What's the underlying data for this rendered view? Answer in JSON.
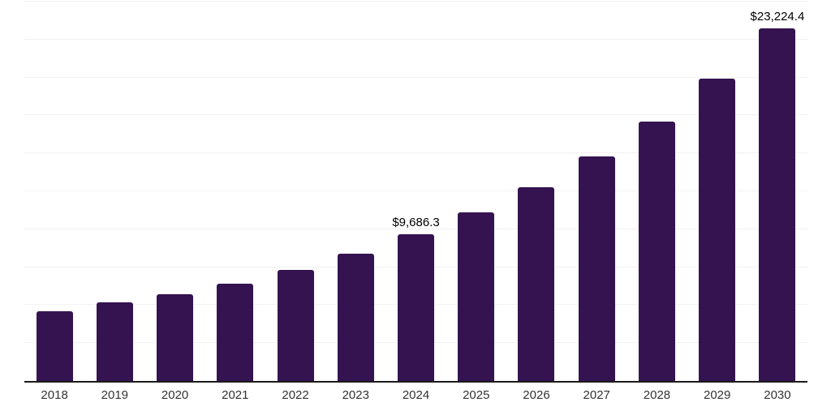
{
  "chart_data": {
    "type": "bar",
    "title": "",
    "categories": [
      "2018",
      "2019",
      "2020",
      "2021",
      "2022",
      "2023",
      "2024",
      "2025",
      "2026",
      "2027",
      "2028",
      "2029",
      "2030"
    ],
    "values": [
      4620,
      5160,
      5740,
      6430,
      7330,
      8395,
      9686.3,
      11105,
      12755,
      14775,
      17110,
      19925,
      23224.4
    ],
    "data_labels": [
      "",
      "",
      "",
      "",
      "",
      "",
      "$9,686.3",
      "",
      "",
      "",
      "",
      "",
      "$23,224.4"
    ],
    "value_prefix": "$",
    "ylim": [
      0,
      25000
    ],
    "grid_interval": 2500,
    "grid": true,
    "legend_position": "none",
    "y_axis_tick_labels_visible": false,
    "note": "unlabeled bar values estimated from gridline scale"
  },
  "colors": {
    "background": "#ffffff",
    "bar": "#341350",
    "gridline": "#f2f2f2",
    "axis": "#1a1a1a",
    "data_label": "#000000",
    "tick_label": "#333333"
  }
}
